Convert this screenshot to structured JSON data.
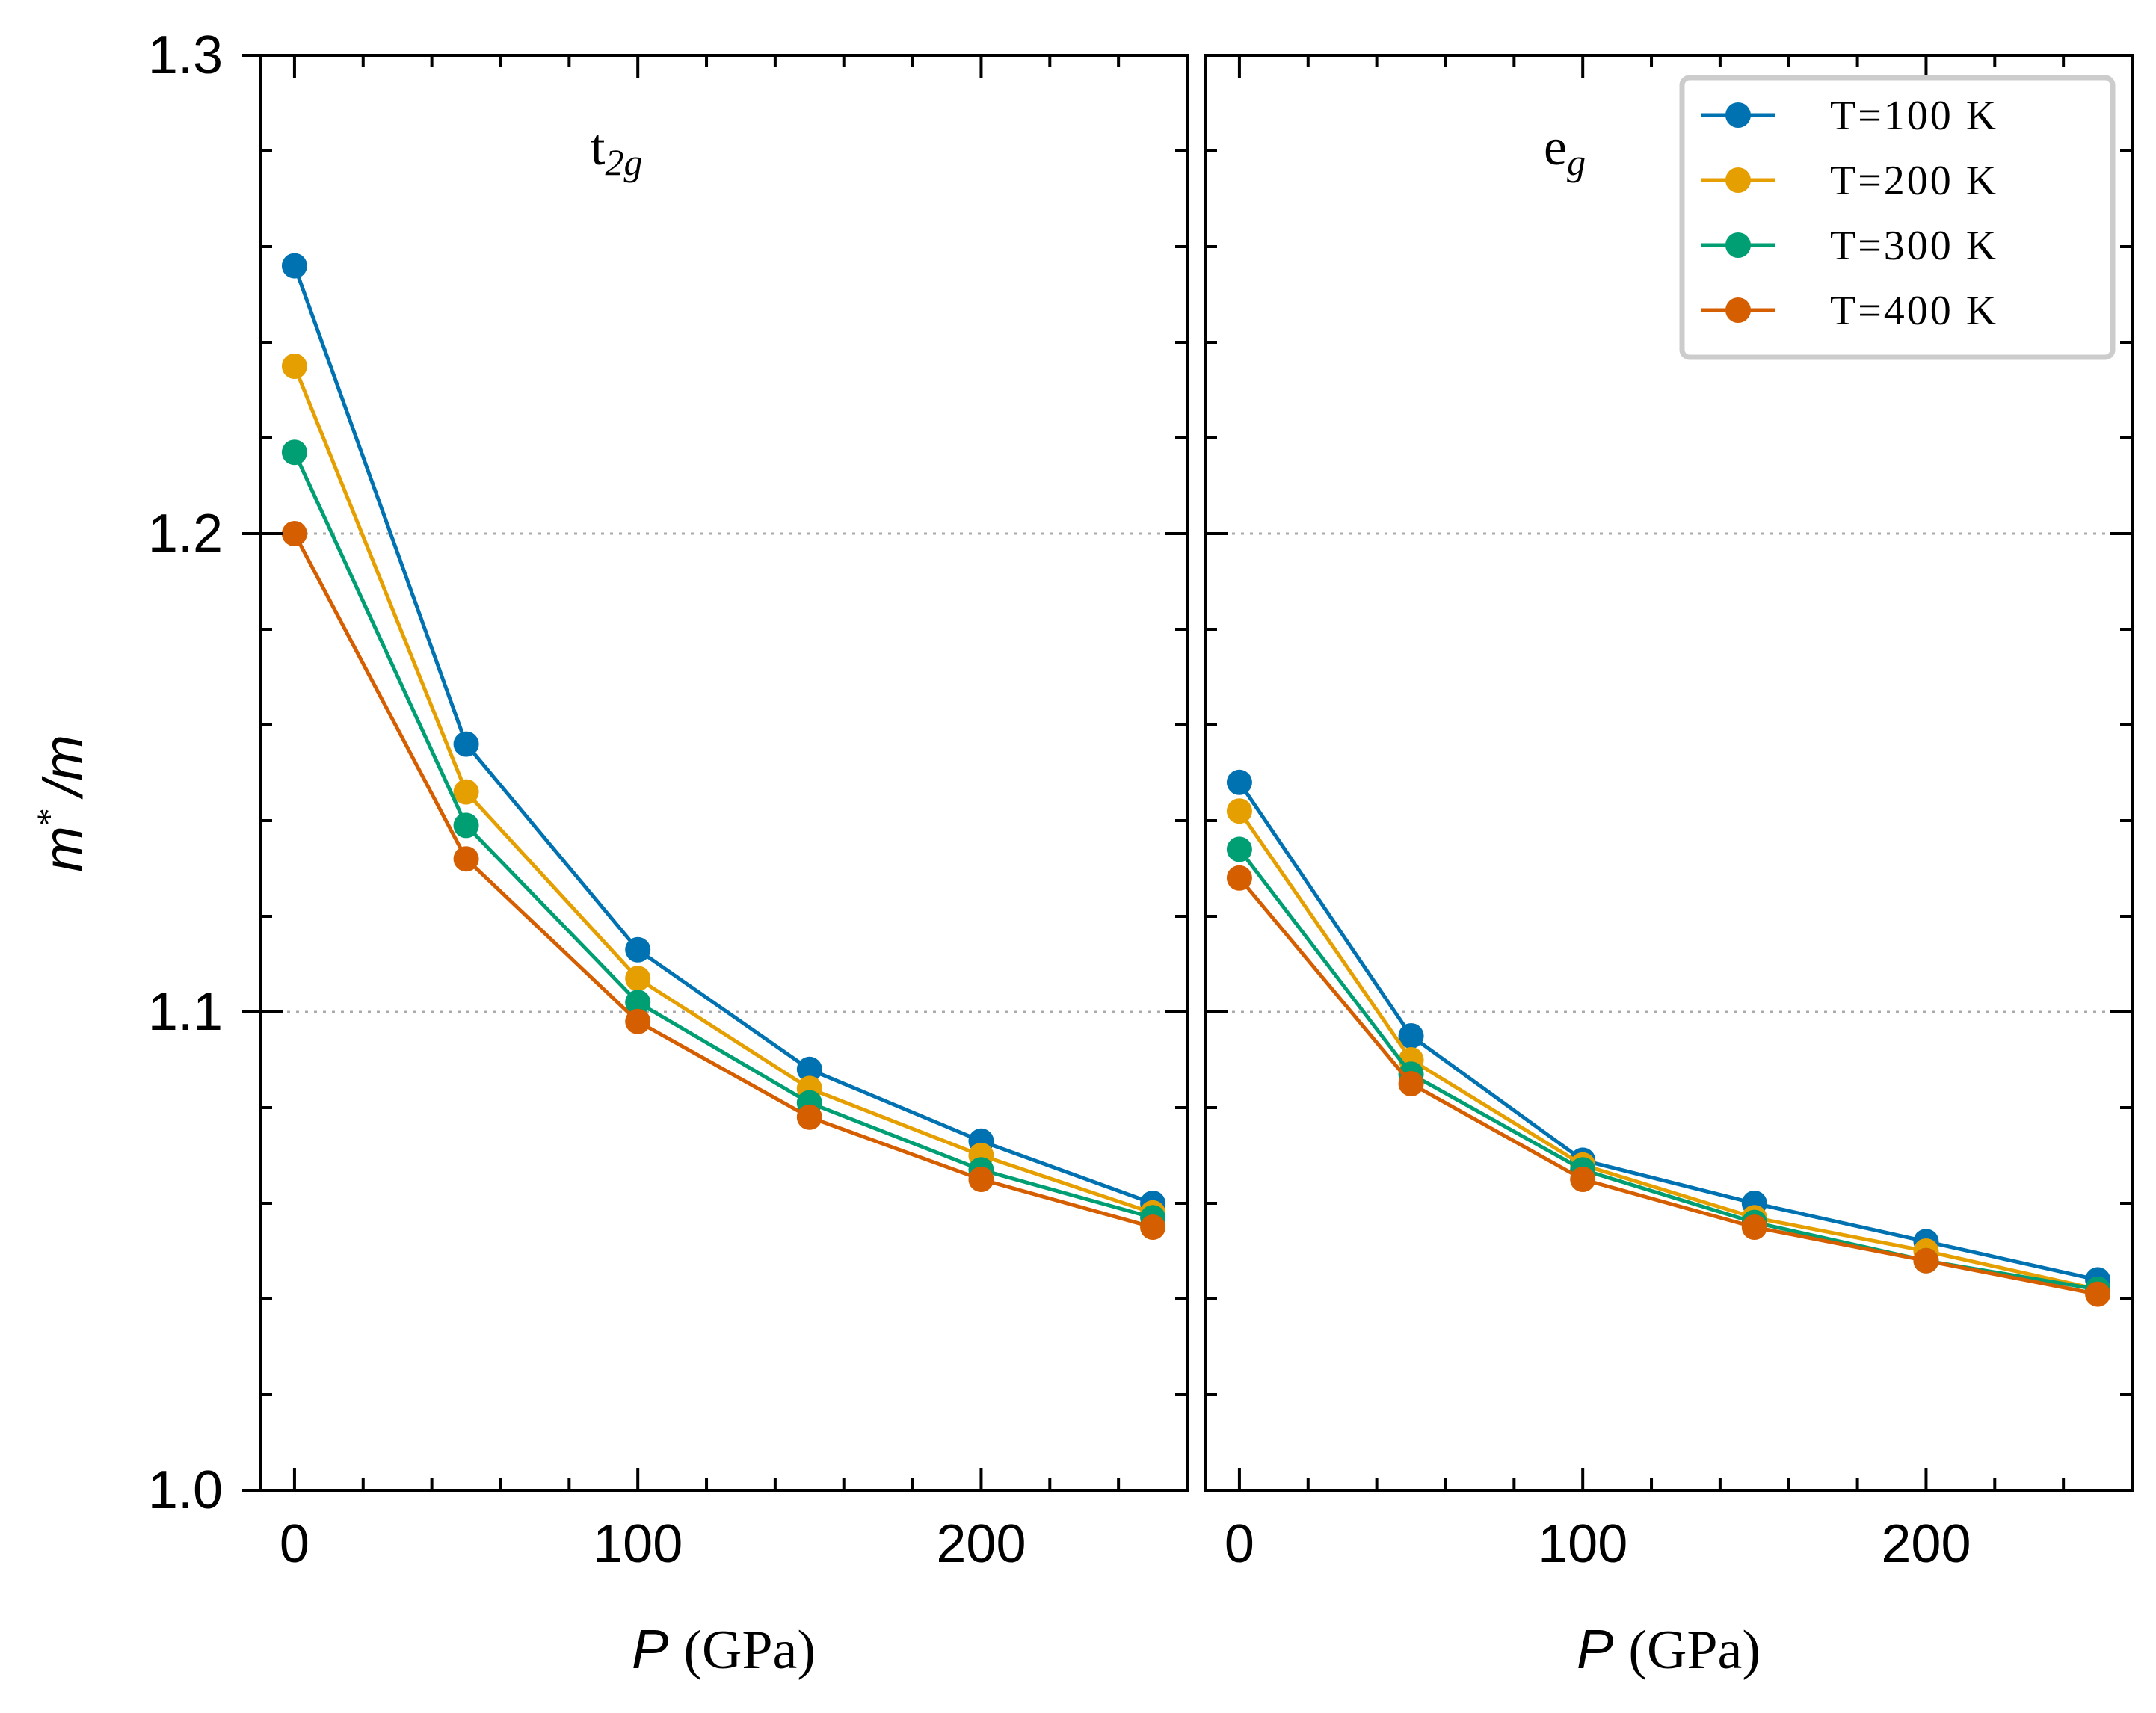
{
  "chart_data": [
    {
      "type": "line",
      "panel_label": {
        "main": "t",
        "sub": "2g"
      },
      "xlabel": {
        "var": "P",
        "unit": "(GPa)"
      },
      "ylabel": {
        "main": "m",
        "sup": "*",
        "rest": "/m"
      },
      "xlim": [
        -10,
        260
      ],
      "ylim": [
        1.0,
        1.3
      ],
      "xticks": [
        0,
        100,
        200
      ],
      "xtick_labels": [
        "0",
        "100",
        "200"
      ],
      "yticks": [
        1.0,
        1.1,
        1.2,
        1.3
      ],
      "ytick_labels": [
        "1.0",
        "1.1",
        "1.2",
        "1.3"
      ],
      "grid": "dotted horizontal at 1.1 and 1.2",
      "x": [
        0,
        50,
        100,
        150,
        200,
        250
      ],
      "series": [
        {
          "name": "T=100 K",
          "color": "#0072B2",
          "values": [
            1.256,
            1.156,
            1.113,
            1.088,
            1.073,
            1.06
          ]
        },
        {
          "name": "T=200 K",
          "color": "#E69F00",
          "values": [
            1.235,
            1.146,
            1.107,
            1.084,
            1.07,
            1.058
          ]
        },
        {
          "name": "T=300 K",
          "color": "#009E73",
          "values": [
            1.217,
            1.139,
            1.102,
            1.081,
            1.067,
            1.057
          ]
        },
        {
          "name": "T=400 K",
          "color": "#D55E00",
          "values": [
            1.2,
            1.132,
            1.098,
            1.078,
            1.065,
            1.055
          ]
        }
      ]
    },
    {
      "type": "line",
      "panel_label": {
        "main": "e",
        "sub": "g"
      },
      "xlabel": {
        "var": "P",
        "unit": "(GPa)"
      },
      "xlim": [
        -10,
        260
      ],
      "ylim": [
        1.0,
        1.3
      ],
      "xticks": [
        0,
        100,
        200
      ],
      "xtick_labels": [
        "0",
        "100",
        "200"
      ],
      "grid": "dotted horizontal at 1.1 and 1.2",
      "legend": "top-right",
      "x": [
        0,
        50,
        100,
        150,
        200,
        250
      ],
      "series": [
        {
          "name": "T=100 K",
          "color": "#0072B2",
          "values": [
            1.148,
            1.095,
            1.069,
            1.06,
            1.052,
            1.044
          ]
        },
        {
          "name": "T=200 K",
          "color": "#E69F00",
          "values": [
            1.142,
            1.09,
            1.068,
            1.057,
            1.05,
            1.042
          ]
        },
        {
          "name": "T=300 K",
          "color": "#009E73",
          "values": [
            1.134,
            1.087,
            1.067,
            1.056,
            1.048,
            1.042
          ]
        },
        {
          "name": "T=400 K",
          "color": "#D55E00",
          "values": [
            1.128,
            1.085,
            1.065,
            1.055,
            1.048,
            1.041
          ]
        }
      ]
    }
  ]
}
